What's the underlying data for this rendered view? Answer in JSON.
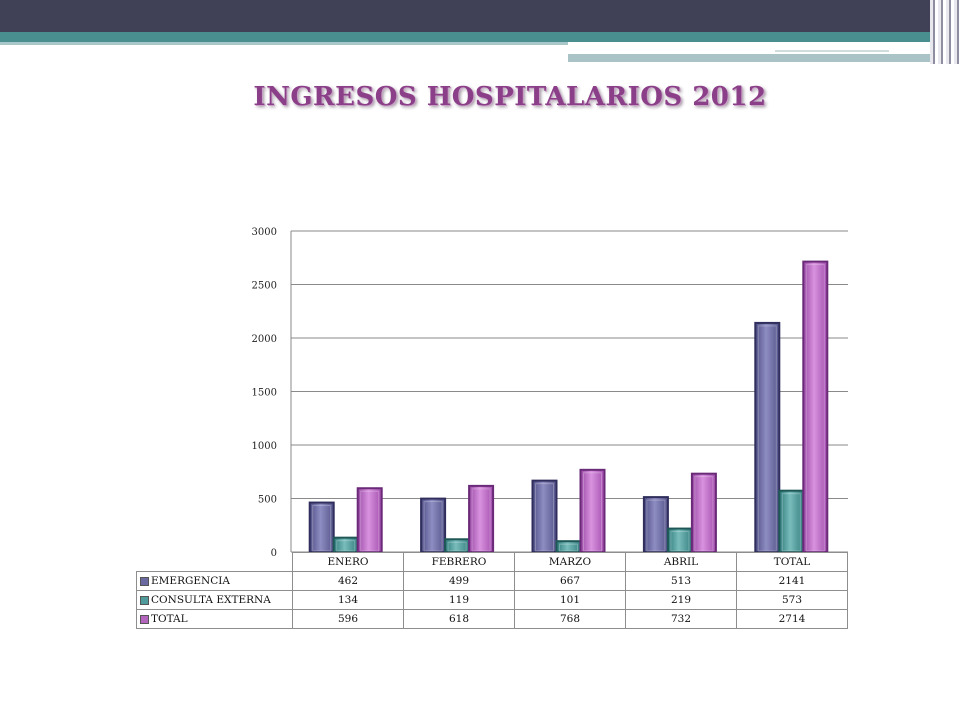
{
  "slide": {
    "title": "INGRESOS HOSPITALARIOS 2012",
    "accent_color": "#8b3f88",
    "header_dark_color": "#404056",
    "header_teal_color": "#3f8a8a"
  },
  "chart_data": {
    "type": "bar",
    "title": "INGRESOS HOSPITALARIOS 2012",
    "categories": [
      "ENERO",
      "FEBRERO",
      "MARZO",
      "ABRIL",
      "TOTAL"
    ],
    "series": [
      {
        "name": "EMERGENCIA",
        "values": [
          462,
          499,
          667,
          513,
          2141
        ],
        "color": "#6b6aa0"
      },
      {
        "name": "CONSULTA EXTERNA",
        "values": [
          134,
          119,
          101,
          219,
          573
        ],
        "color": "#4f9a9a"
      },
      {
        "name": "TOTAL",
        "values": [
          596,
          618,
          768,
          732,
          2714
        ],
        "color": "#b465be"
      }
    ],
    "ylim": [
      0,
      3000
    ],
    "yticks": [
      0,
      500,
      1000,
      1500,
      2000,
      2500,
      3000
    ],
    "grid": true,
    "legend": "data-table-below"
  }
}
